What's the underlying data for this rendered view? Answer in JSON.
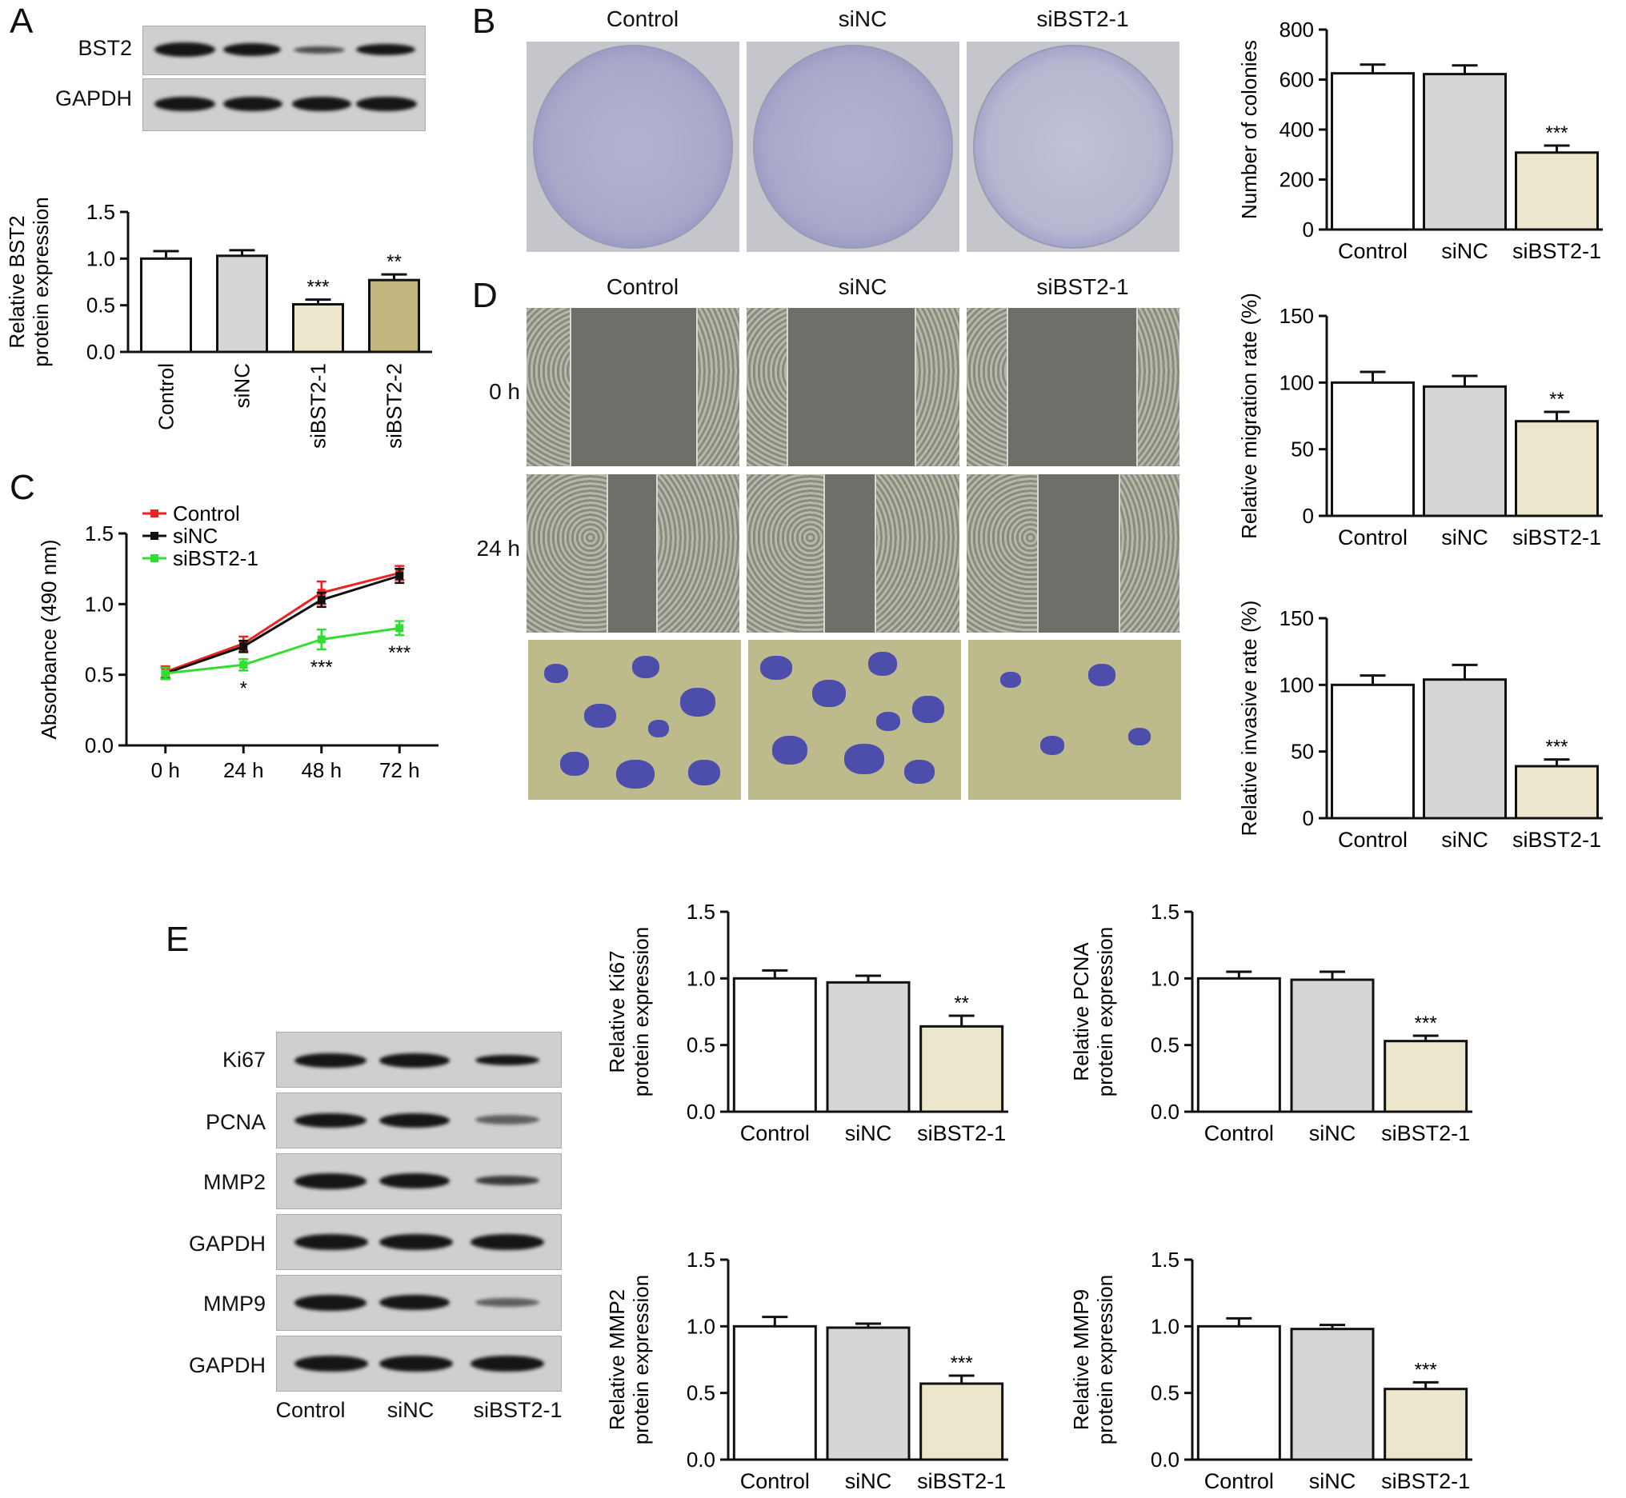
{
  "panel_letters": {
    "a": "A",
    "b": "B",
    "c": "C",
    "d": "D",
    "e": "E"
  },
  "panel_a": {
    "blot_labels": [
      "BST2",
      "GAPDH"
    ],
    "lanes": [
      "Control",
      "siNC",
      "siBST2-1",
      "siBST2-2"
    ]
  },
  "panel_b": {
    "headers": [
      "Control",
      "siNC",
      "siBST2-1"
    ]
  },
  "panel_d": {
    "headers": [
      "Control",
      "siNC",
      "siBST2-1"
    ],
    "timepoints": [
      "0 h",
      "24 h"
    ]
  },
  "panel_e": {
    "blot_labels": [
      "Ki67",
      "PCNA",
      "MMP2",
      "GAPDH",
      "MMP9",
      "GAPDH"
    ],
    "lanes": [
      "Control",
      "siNC",
      "siBST2-1"
    ]
  },
  "chart_data": [
    {
      "id": "a",
      "type": "bar",
      "categories": [
        "Control",
        "siNC",
        "siBST2-1",
        "siBST2-2"
      ],
      "values": [
        1.0,
        1.03,
        0.51,
        0.77
      ],
      "errors": [
        0.08,
        0.06,
        0.05,
        0.06
      ],
      "sig": [
        "",
        "",
        "***",
        "**"
      ],
      "colors": [
        "#ffffff",
        "#d6d6d6",
        "#ece6cc",
        "#c2b67e"
      ],
      "ylabel": [
        "Relative BST2",
        "protein expression"
      ],
      "ylim": [
        0,
        1.5
      ],
      "ticks": [
        "0.0",
        "0.5",
        "1.0",
        "1.5"
      ],
      "rotate_labels": true
    },
    {
      "id": "b",
      "type": "bar",
      "categories": [
        "Control",
        "siNC",
        "siBST2-1"
      ],
      "values": [
        625,
        622,
        308
      ],
      "errors": [
        35,
        35,
        28
      ],
      "sig": [
        "",
        "",
        "***"
      ],
      "colors": [
        "#ffffff",
        "#d6d6d6",
        "#ece6cc"
      ],
      "ylabel": [
        "Number of colonies"
      ],
      "ylim": [
        0,
        800
      ],
      "ticks": [
        "0",
        "200",
        "400",
        "600",
        "800"
      ]
    },
    {
      "id": "c",
      "type": "line",
      "x": [
        "0 h",
        "24 h",
        "48 h",
        "72 h"
      ],
      "series": [
        {
          "name": "Control",
          "color": "#ee2222",
          "values": [
            0.52,
            0.72,
            1.08,
            1.22
          ],
          "errors": [
            0.04,
            0.05,
            0.08,
            0.05
          ]
        },
        {
          "name": "siNC",
          "color": "#111111",
          "values": [
            0.51,
            0.7,
            1.03,
            1.2
          ],
          "errors": [
            0.04,
            0.04,
            0.05,
            0.05
          ]
        },
        {
          "name": "siBST2-1",
          "color": "#33dd33",
          "values": [
            0.51,
            0.57,
            0.75,
            0.83
          ],
          "errors": [
            0.04,
            0.04,
            0.07,
            0.05
          ]
        }
      ],
      "sig": [
        "",
        "*",
        "***",
        "***"
      ],
      "ylabel": [
        "Absorbance (490 nm)"
      ],
      "ylim": [
        0,
        1.5
      ],
      "ticks": [
        "0.0",
        "0.5",
        "1.0",
        "1.5"
      ]
    },
    {
      "id": "d1",
      "type": "bar",
      "categories": [
        "Control",
        "siNC",
        "siBST2-1"
      ],
      "values": [
        100,
        97,
        71
      ],
      "errors": [
        8,
        8,
        7
      ],
      "sig": [
        "",
        "",
        "**"
      ],
      "colors": [
        "#ffffff",
        "#d6d6d6",
        "#ece6cc"
      ],
      "ylabel": [
        "Relative migration rate (%)"
      ],
      "ylim": [
        0,
        150
      ],
      "ticks": [
        "0",
        "50",
        "100",
        "150"
      ]
    },
    {
      "id": "d2",
      "type": "bar",
      "categories": [
        "Control",
        "siNC",
        "siBST2-1"
      ],
      "values": [
        100,
        104,
        39
      ],
      "errors": [
        7,
        11,
        5
      ],
      "sig": [
        "",
        "",
        "***"
      ],
      "colors": [
        "#ffffff",
        "#d6d6d6",
        "#ece6cc"
      ],
      "ylabel": [
        "Relative invasive rate (%)"
      ],
      "ylim": [
        0,
        150
      ],
      "ticks": [
        "0",
        "50",
        "100",
        "150"
      ]
    },
    {
      "id": "e1",
      "type": "bar",
      "categories": [
        "Control",
        "siNC",
        "siBST2-1"
      ],
      "values": [
        1.0,
        0.97,
        0.64
      ],
      "errors": [
        0.06,
        0.05,
        0.08
      ],
      "sig": [
        "",
        "",
        "**"
      ],
      "colors": [
        "#ffffff",
        "#d6d6d6",
        "#ece6cc"
      ],
      "ylabel": [
        "Relative Ki67",
        "protein expression"
      ],
      "ylim": [
        0,
        1.5
      ],
      "ticks": [
        "0.0",
        "0.5",
        "1.0",
        "1.5"
      ]
    },
    {
      "id": "e2",
      "type": "bar",
      "categories": [
        "Control",
        "siNC",
        "siBST2-1"
      ],
      "values": [
        1.0,
        0.99,
        0.53
      ],
      "errors": [
        0.05,
        0.06,
        0.04
      ],
      "sig": [
        "",
        "",
        "***"
      ],
      "colors": [
        "#ffffff",
        "#d6d6d6",
        "#ece6cc"
      ],
      "ylabel": [
        "Relative PCNA",
        "protein expression"
      ],
      "ylim": [
        0,
        1.5
      ],
      "ticks": [
        "0.0",
        "0.5",
        "1.0",
        "1.5"
      ]
    },
    {
      "id": "e3",
      "type": "bar",
      "categories": [
        "Control",
        "siNC",
        "siBST2-1"
      ],
      "values": [
        1.0,
        0.99,
        0.57
      ],
      "errors": [
        0.07,
        0.03,
        0.06
      ],
      "sig": [
        "",
        "",
        "***"
      ],
      "colors": [
        "#ffffff",
        "#d6d6d6",
        "#ece6cc"
      ],
      "ylabel": [
        "Relative MMP2",
        "protein expression"
      ],
      "ylim": [
        0,
        1.5
      ],
      "ticks": [
        "0.0",
        "0.5",
        "1.0",
        "1.5"
      ]
    },
    {
      "id": "e4",
      "type": "bar",
      "categories": [
        "Control",
        "siNC",
        "siBST2-1"
      ],
      "values": [
        1.0,
        0.98,
        0.53
      ],
      "errors": [
        0.06,
        0.03,
        0.05
      ],
      "sig": [
        "",
        "",
        "***"
      ],
      "colors": [
        "#ffffff",
        "#d6d6d6",
        "#ece6cc"
      ],
      "ylabel": [
        "Relative MMP9",
        "protein expression"
      ],
      "ylim": [
        0,
        1.5
      ],
      "ticks": [
        "0.0",
        "0.5",
        "1.0",
        "1.5"
      ]
    }
  ]
}
